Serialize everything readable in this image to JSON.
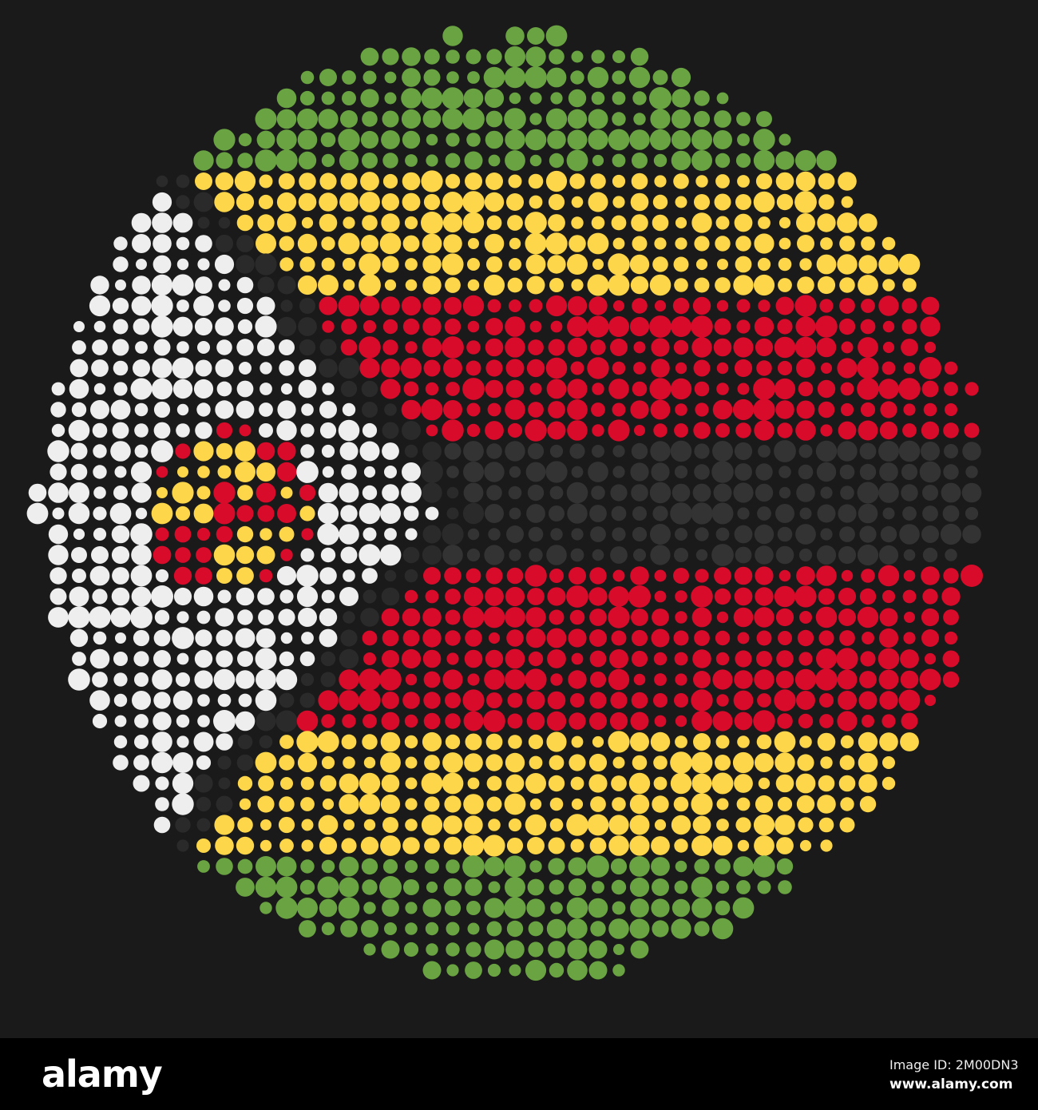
{
  "artwork": {
    "subject": "Zimbabwe flag dotted circle",
    "colors": {
      "background": "#1a1a1a",
      "green": "#6aa342",
      "yellow": "#fdd64a",
      "red": "#d90b2a",
      "black": "#333333",
      "white": "#eeeeee",
      "border": "#2a2a2a"
    }
  },
  "watermark": "alamy",
  "footer": {
    "logo": "alamy",
    "image_id": "Image ID: 2M00DN3",
    "website": "www.alamy.com"
  }
}
